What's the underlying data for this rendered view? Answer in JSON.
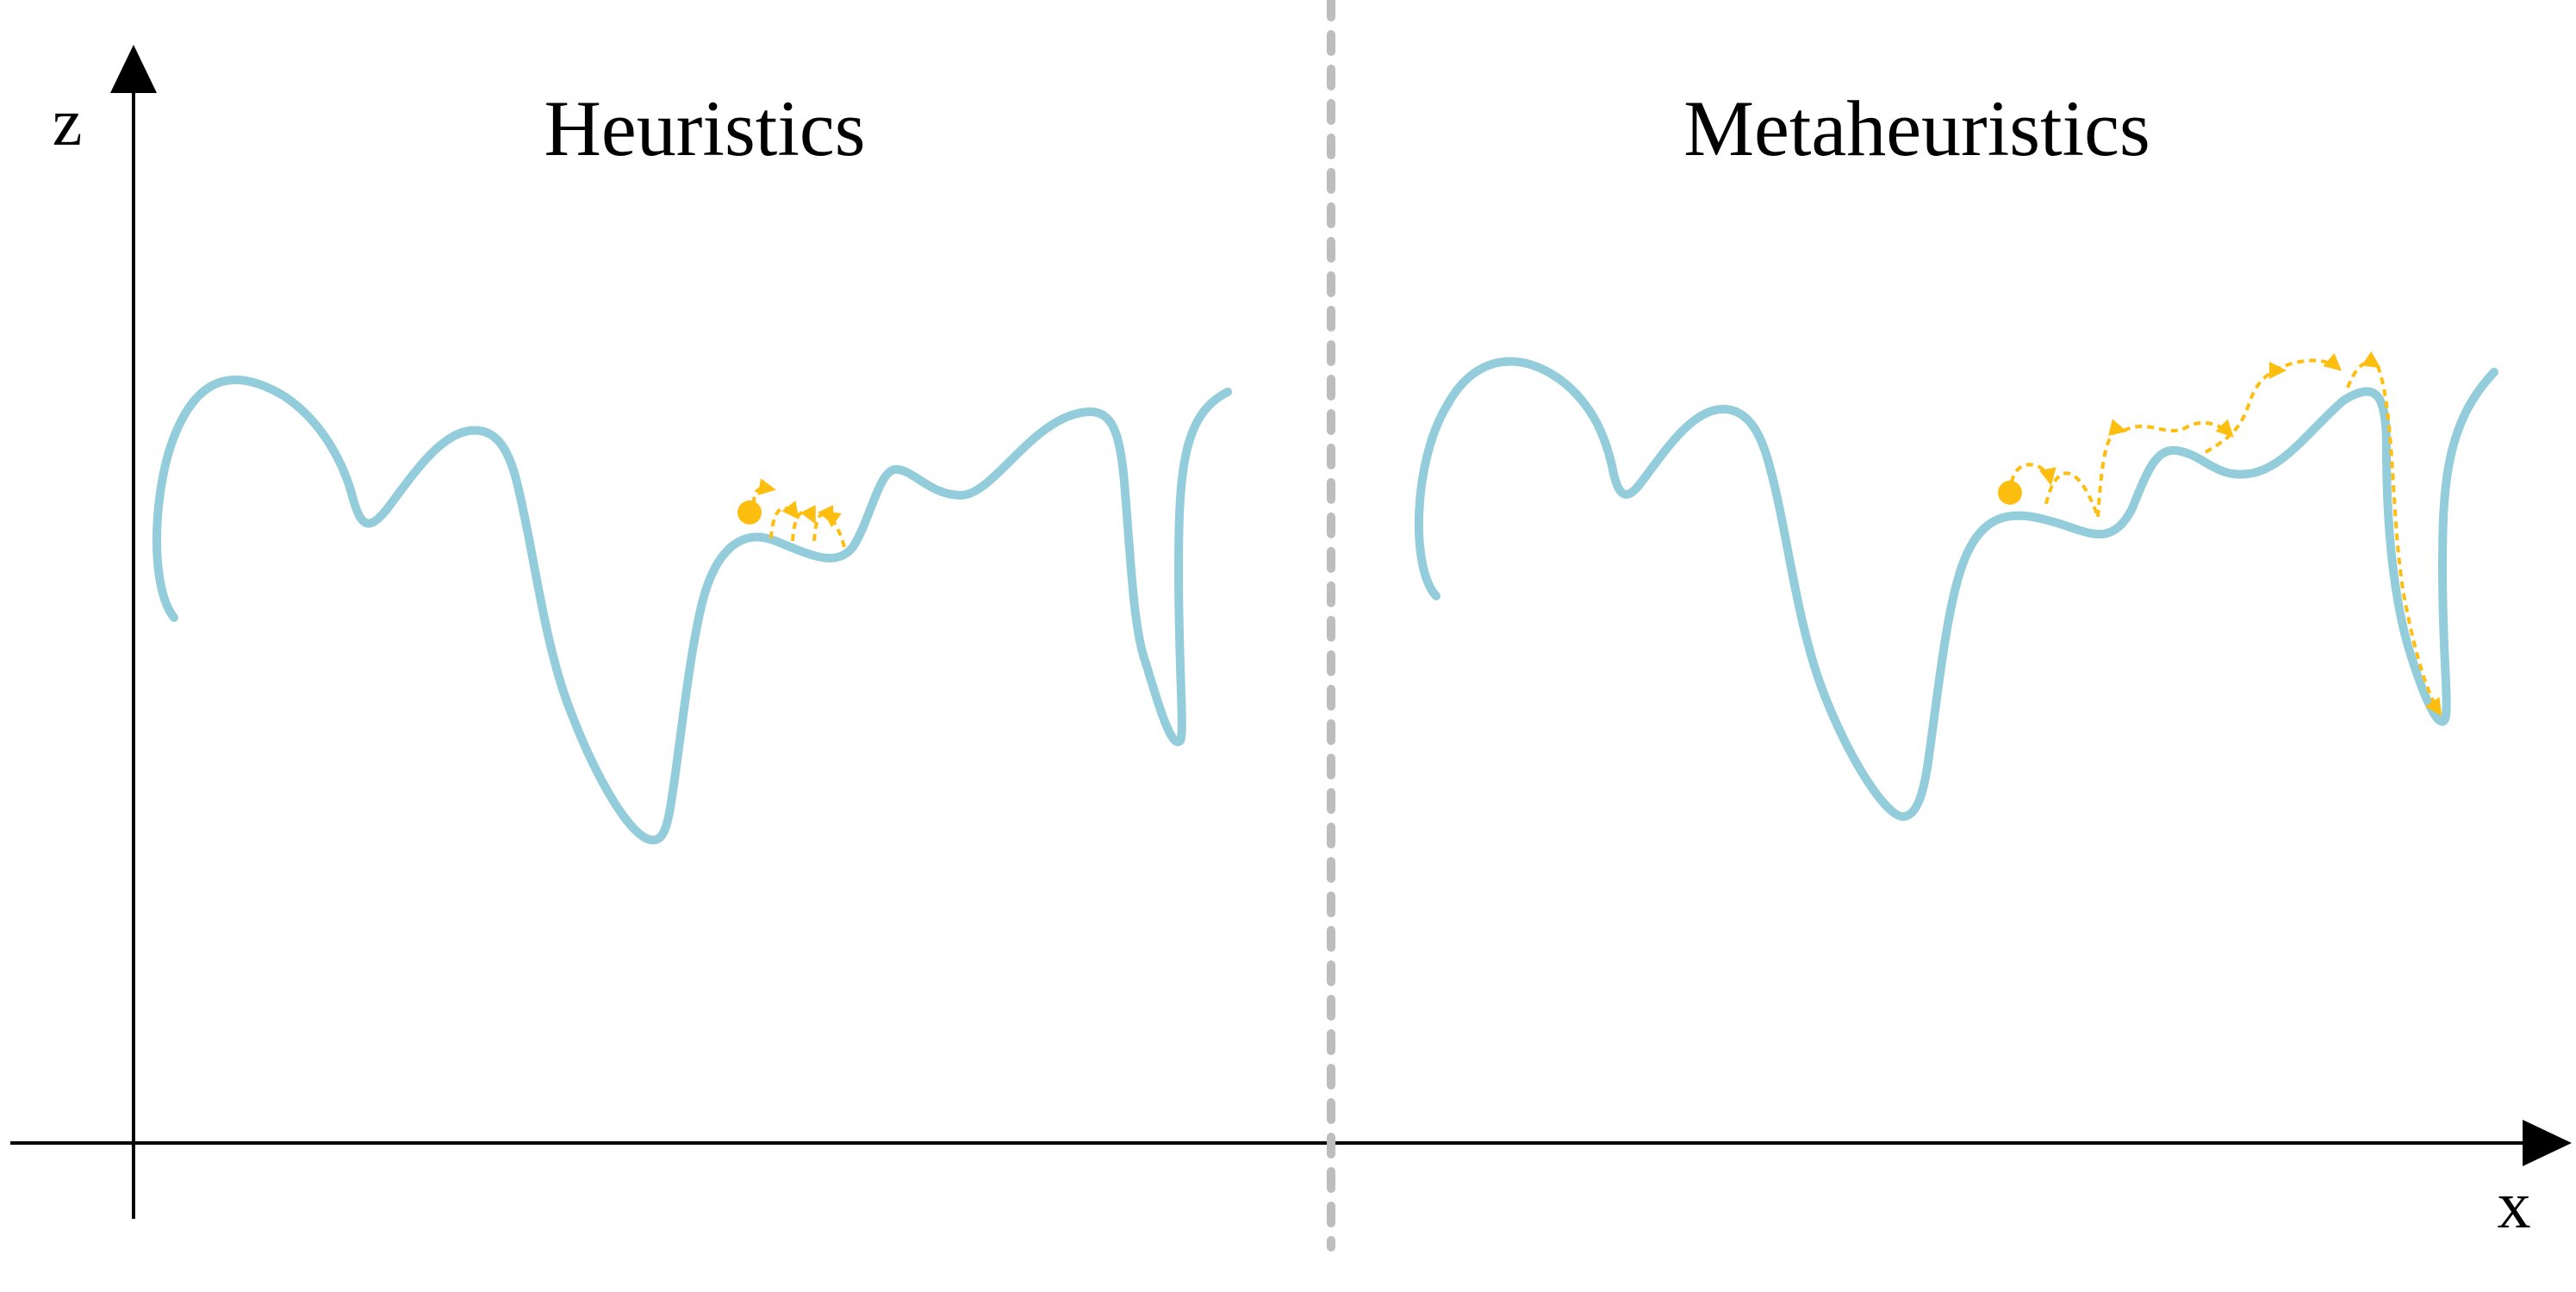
{
  "axes": {
    "z_label": "z",
    "x_label": "x"
  },
  "panels": {
    "left": {
      "title": "Heuristics"
    },
    "right": {
      "title": "Metaheuristics"
    }
  },
  "colors": {
    "landscape": "#93CCDA",
    "search_path": "#FDBE10",
    "axis": "#000000",
    "divider": "#BDBDBD"
  }
}
